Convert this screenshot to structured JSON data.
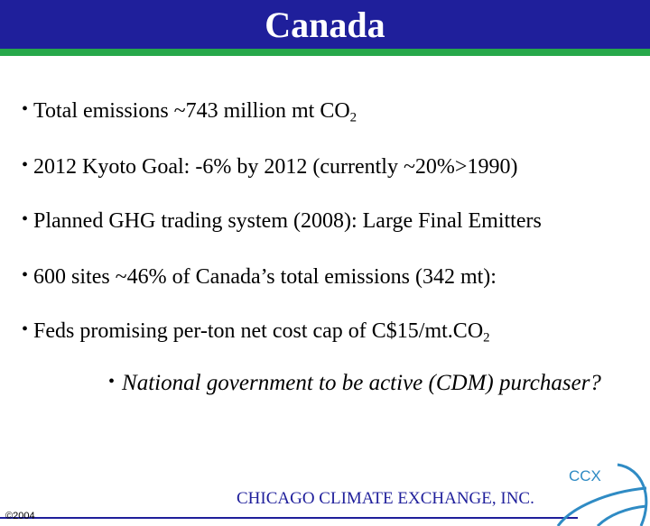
{
  "slide": {
    "title": "Canada",
    "bullets": [
      {
        "text": "Total emissions ~743 million mt CO",
        "sub": "2",
        "tail": ""
      },
      {
        "text": "2012 Kyoto Goal: -6% by 2012 (currently ~20%>1990)",
        "sub": "",
        "tail": ""
      },
      {
        "text": "Planned GHG trading system (2008): Large Final Emitters",
        "sub": "",
        "tail": ""
      },
      {
        "text": "600 sites ~46% of Canada’s total emissions (342 mt):",
        "sub": "",
        "tail": ""
      },
      {
        "text": "Feds promising per-ton net cost cap of C$15/mt.CO",
        "sub": "2",
        "tail": ""
      }
    ],
    "sub_bullet": "National government to be active (CDM) purchaser?",
    "bullet_symbol": "•"
  },
  "footer": {
    "organization": "CHICAGO CLIMATE EXCHANGE, INC.",
    "copyright": "©2004",
    "logo_text": "CCX"
  },
  "colors": {
    "title_bar": "#1f1f9b",
    "accent": "#27a84a",
    "footer_text": "#1f1f9b",
    "logo": "#2f8bc4"
  }
}
